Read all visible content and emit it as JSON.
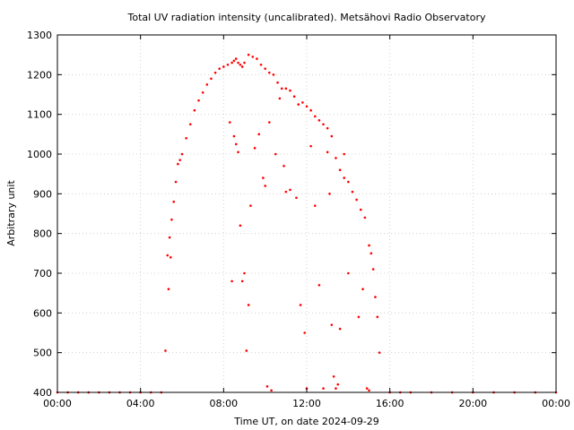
{
  "chart_data": {
    "type": "scatter",
    "title": "Total UV radiation intensity (uncalibrated). Metsähovi Radio Observatory",
    "xlabel": "Time UT, on date 2024-09-29",
    "ylabel": "Arbitrary unit",
    "xlim": [
      0,
      24
    ],
    "ylim": [
      400,
      1300
    ],
    "x_ticks": [
      {
        "value": 0,
        "label": "00:00"
      },
      {
        "value": 4,
        "label": "04:00"
      },
      {
        "value": 8,
        "label": "08:00"
      },
      {
        "value": 12,
        "label": "12:00"
      },
      {
        "value": 16,
        "label": "16:00"
      },
      {
        "value": 20,
        "label": "20:00"
      },
      {
        "value": 24,
        "label": "00:00"
      }
    ],
    "y_ticks": [
      400,
      500,
      600,
      700,
      800,
      900,
      1000,
      1100,
      1200,
      1300
    ],
    "grid": true,
    "point_color": "#ff0000",
    "series": [
      {
        "x": [
          0.0,
          0.5,
          1.0,
          1.5,
          2.0,
          2.5,
          3.0,
          3.5,
          4.0,
          4.5,
          5.0,
          5.2,
          5.3,
          5.35,
          5.4,
          5.45,
          5.5,
          5.6,
          5.7,
          5.8,
          5.9,
          6.0,
          6.2,
          6.4,
          6.6,
          6.8,
          7.0,
          7.2,
          7.4,
          7.6,
          7.8,
          8.0,
          8.2,
          8.4,
          8.5,
          8.6,
          8.7,
          8.8,
          8.9,
          9.0,
          9.2,
          9.4,
          9.6,
          9.8,
          10.0,
          10.2,
          10.4,
          10.6,
          10.8,
          11.0,
          11.2,
          11.4,
          11.6,
          11.8,
          12.0,
          12.2,
          12.4,
          12.6,
          12.8,
          13.0,
          13.2,
          13.4,
          13.6,
          13.8,
          14.0,
          14.2,
          14.4,
          14.6,
          14.8,
          15.0,
          15.1,
          15.2,
          15.3,
          15.4,
          15.5,
          16.0,
          16.5,
          17.0,
          18.0,
          19.0,
          20.0,
          21.0,
          22.0,
          23.0,
          24.0
        ],
        "y": [
          400,
          400,
          400,
          400,
          400,
          400,
          400,
          400,
          400,
          400,
          400,
          505,
          745,
          660,
          790,
          740,
          835,
          880,
          930,
          975,
          985,
          1000,
          1040,
          1075,
          1110,
          1135,
          1155,
          1175,
          1190,
          1205,
          1215,
          1220,
          1225,
          1230,
          1235,
          1240,
          1230,
          1225,
          1220,
          1230,
          1250,
          1245,
          1240,
          1225,
          1215,
          1205,
          1200,
          1180,
          1165,
          1165,
          1160,
          1145,
          1125,
          1130,
          1120,
          1110,
          1095,
          1085,
          1075,
          1065,
          1045,
          990,
          960,
          940,
          930,
          905,
          885,
          860,
          840,
          770,
          750,
          710,
          640,
          590,
          500,
          400,
          400,
          400,
          400,
          400,
          400,
          400,
          400,
          400,
          400
        ]
      },
      {
        "x": [
          8.3,
          8.4,
          8.5,
          8.6,
          8.7,
          8.8,
          8.9,
          9.0,
          9.1,
          9.2,
          9.3,
          9.5,
          9.7,
          9.9,
          10.0,
          10.1,
          10.2,
          10.3,
          10.5,
          10.7,
          10.9,
          11.0,
          11.2,
          11.5,
          11.7,
          11.9,
          12.0,
          12.2,
          12.4,
          12.6,
          12.8,
          13.0,
          13.1,
          13.2,
          13.3,
          13.4,
          13.5,
          13.6,
          13.8,
          14.0,
          14.5,
          14.7,
          14.9,
          15.0
        ],
        "y": [
          1080,
          680,
          1045,
          1025,
          1005,
          820,
          680,
          700,
          505,
          620,
          870,
          1015,
          1050,
          940,
          920,
          415,
          1080,
          405,
          1000,
          1140,
          970,
          905,
          910,
          890,
          620,
          550,
          410,
          1020,
          870,
          670,
          410,
          1005,
          900,
          570,
          440,
          410,
          420,
          560,
          1000,
          700,
          590,
          660,
          410,
          405
        ]
      }
    ]
  }
}
